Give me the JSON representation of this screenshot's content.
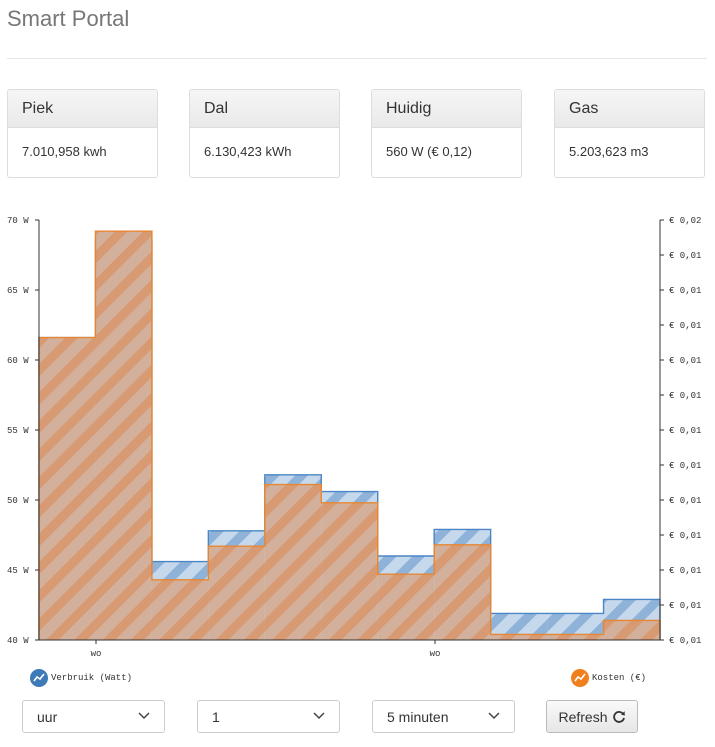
{
  "header": {
    "title": "Smart Portal"
  },
  "cards": [
    {
      "title": "Piek",
      "value": "7.010,958 kwh"
    },
    {
      "title": "Dal",
      "value": "6.130,423 kWh"
    },
    {
      "title": "Huidig",
      "value": "560 W (€ 0,12)"
    },
    {
      "title": "Gas",
      "value": "5.203,623 m3"
    }
  ],
  "chart_data": {
    "type": "area",
    "step": true,
    "y_left": {
      "min": 40,
      "max": 70,
      "ticks": [
        "70 W",
        "65 W",
        "60 W",
        "55 W",
        "50 W",
        "45 W",
        "40 W"
      ]
    },
    "y_right": {
      "ticks": [
        "€ 0,02",
        "€ 0,01",
        "€ 0,01",
        "€ 0,01",
        "€ 0,01",
        "€ 0,01",
        "€ 0,01",
        "€ 0,01",
        "€ 0,01",
        "€ 0,01",
        "€ 0,01",
        "€ 0,01",
        "€ 0,01"
      ]
    },
    "x_ticks": [
      "wo",
      "wo"
    ],
    "series": [
      {
        "name": "Verbruik (Watt)",
        "color": "#4a86c5",
        "values": [
          61.6,
          68.6,
          45.6,
          47.8,
          51.8,
          50.6,
          46.0,
          47.9,
          41.9,
          41.9,
          42.9
        ]
      },
      {
        "name": "Kosten (€)",
        "color": "#e88630",
        "values": [
          61.6,
          69.2,
          44.3,
          46.7,
          51.1,
          49.8,
          44.7,
          46.8,
          40.4,
          40.4,
          41.4
        ]
      }
    ]
  },
  "legend": {
    "verbruik": "Verbruik (Watt)",
    "kosten": "Kosten (€)"
  },
  "controls": {
    "period": "uur",
    "count": "1",
    "interval": "5 minuten",
    "refresh_label": "Refresh"
  }
}
